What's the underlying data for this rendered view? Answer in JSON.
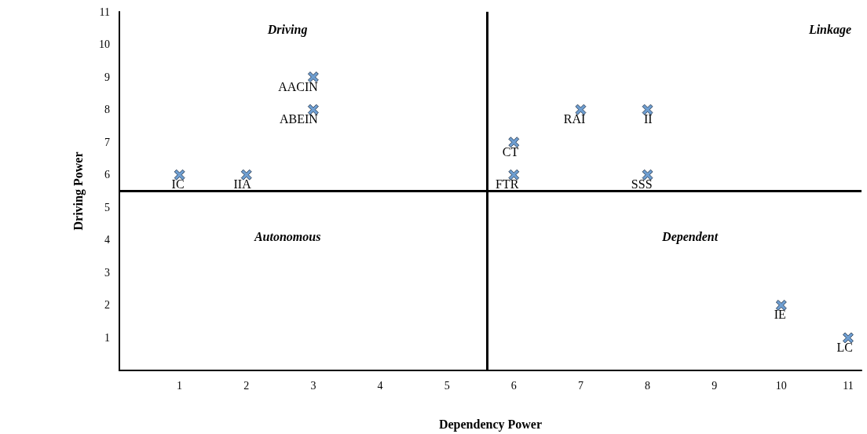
{
  "chart_data": {
    "type": "scatter",
    "xlabel": "Dependency Power",
    "ylabel": "Driving Power",
    "x": [
      1,
      2,
      3,
      3,
      6,
      6,
      7,
      8,
      8,
      10,
      11
    ],
    "series": [
      {
        "color": "#4a86c5",
        "values": [
          6,
          6,
          9,
          8,
          7,
          6,
          8,
          8,
          6,
          2,
          1
        ]
      }
    ],
    "marker": "cross",
    "grid": false,
    "xlim": [
      0.1,
      11.2
    ],
    "xticks": [
      1,
      2,
      3,
      4,
      5,
      6,
      7,
      8,
      9,
      10,
      11
    ],
    "ylim": [
      0,
      11
    ],
    "yticks": [
      1,
      2,
      3,
      4,
      5,
      6,
      7,
      8,
      9,
      10,
      11
    ],
    "ref_lines": [
      {
        "axis": "x",
        "value": 5.6,
        "color": "#000000"
      },
      {
        "axis": "y",
        "value": 5.5,
        "color": "#000000"
      }
    ],
    "annotations": [
      {
        "text": "IC",
        "x": 1,
        "y": 6
      },
      {
        "text": "IIA",
        "x": 2,
        "y": 6
      },
      {
        "text": "AACIN",
        "x": 3,
        "y": 9
      },
      {
        "text": "ABEIN",
        "x": 3,
        "y": 8
      },
      {
        "text": "CT",
        "x": 6,
        "y": 7
      },
      {
        "text": "FTR",
        "x": 6,
        "y": 6
      },
      {
        "text": "RAI",
        "x": 7,
        "y": 8
      },
      {
        "text": "II",
        "x": 8,
        "y": 8
      },
      {
        "text": "SSS",
        "x": 8,
        "y": 6
      },
      {
        "text": "IE",
        "x": 10,
        "y": 2
      },
      {
        "text": "LC",
        "x": 11,
        "y": 1
      },
      "Driving",
      "Linkage",
      "Autonomous",
      "Dependent"
    ]
  }
}
